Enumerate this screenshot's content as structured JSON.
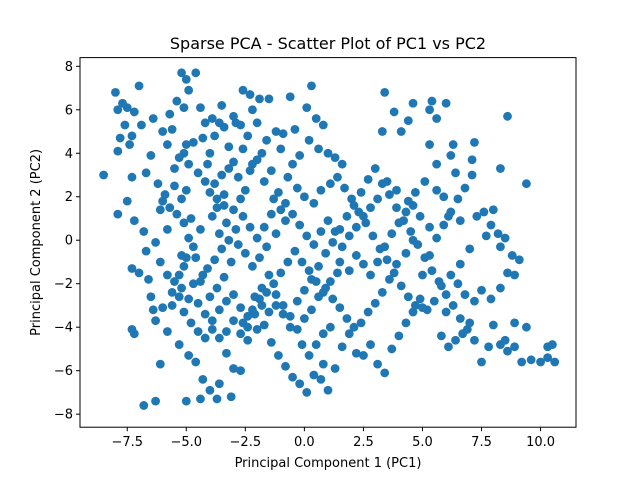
{
  "chart_data": {
    "type": "scatter",
    "title": "Sparse PCA - Scatter Plot of PC1 vs PC2",
    "xlabel": "Principal Component 1 (PC1)",
    "ylabel": "Principal Component 2 (PC2)",
    "xlim": [
      -9.5,
      11.5
    ],
    "ylim": [
      -8.6,
      8.4
    ],
    "xticks": [
      -7.5,
      -5.0,
      -2.5,
      0.0,
      2.5,
      5.0,
      7.5,
      10.0
    ],
    "xtick_labels": [
      "−7.5",
      "−5.0",
      "−2.5",
      "0.0",
      "2.5",
      "5.0",
      "7.5",
      "10.0"
    ],
    "yticks": [
      -8,
      -6,
      -4,
      -2,
      0,
      2,
      4,
      6,
      8
    ],
    "ytick_labels": [
      "−8",
      "−6",
      "−4",
      "−2",
      "0",
      "2",
      "4",
      "6",
      "8"
    ],
    "grid": false,
    "marker_color": "#1f77b4",
    "points": [
      [
        -8.5,
        3.0
      ],
      [
        -8.0,
        6.8
      ],
      [
        -7.9,
        6.0
      ],
      [
        -7.7,
        6.3
      ],
      [
        -7.5,
        6.1
      ],
      [
        -7.8,
        4.7
      ],
      [
        -7.6,
        5.3
      ],
      [
        -7.4,
        4.4
      ],
      [
        -7.3,
        4.8
      ],
      [
        -7.2,
        5.9
      ],
      [
        -7.9,
        4.1
      ],
      [
        -7.3,
        2.9
      ],
      [
        -7.0,
        7.1
      ],
      [
        -6.9,
        5.3
      ],
      [
        -6.5,
        3.9
      ],
      [
        -6.7,
        3.1
      ],
      [
        -7.5,
        1.8
      ],
      [
        -7.9,
        1.2
      ],
      [
        -7.2,
        0.9
      ],
      [
        -6.8,
        0.4
      ],
      [
        -7.3,
        -1.3
      ],
      [
        -7.0,
        -1.5
      ],
      [
        -6.7,
        -0.5
      ],
      [
        -6.3,
        -0.1
      ],
      [
        -6.6,
        -1.8
      ],
      [
        -6.5,
        -2.6
      ],
      [
        -6.4,
        -3.2
      ],
      [
        -6.3,
        -3.7
      ],
      [
        -7.3,
        -4.1
      ],
      [
        -7.2,
        -4.3
      ],
      [
        -6.8,
        -7.6
      ],
      [
        -6.3,
        -7.4
      ],
      [
        -6.1,
        -5.7
      ],
      [
        -5.8,
        -4.2
      ],
      [
        -6.0,
        -3.1
      ],
      [
        -5.6,
        -2.4
      ],
      [
        -5.3,
        -1.6
      ],
      [
        -5.2,
        -0.7
      ],
      [
        -5.8,
        0.5
      ],
      [
        -6.1,
        1.4
      ],
      [
        -5.9,
        2.1
      ],
      [
        -5.5,
        2.5
      ],
      [
        -5.2,
        1.9
      ],
      [
        -5.0,
        2.3
      ],
      [
        -5.5,
        3.3
      ],
      [
        -5.1,
        4.0
      ],
      [
        -5.0,
        4.4
      ],
      [
        -4.7,
        4.5
      ],
      [
        -5.6,
        5.1
      ],
      [
        -5.7,
        5.8
      ],
      [
        -5.4,
        6.4
      ],
      [
        -5.2,
        7.7
      ],
      [
        -5.0,
        7.4
      ],
      [
        -4.9,
        6.9
      ],
      [
        -4.6,
        7.7
      ],
      [
        -5.1,
        6.1
      ],
      [
        -4.4,
        6.1
      ],
      [
        -4.2,
        5.4
      ],
      [
        -3.9,
        5.6
      ],
      [
        -3.6,
        5.4
      ],
      [
        -3.4,
        5.2
      ],
      [
        -4.0,
        4.0
      ],
      [
        -4.3,
        4.7
      ],
      [
        -4.1,
        3.5
      ],
      [
        -3.8,
        2.6
      ],
      [
        -3.5,
        3.0
      ],
      [
        -3.2,
        3.3
      ],
      [
        -3.4,
        2.1
      ],
      [
        -3.7,
        1.5
      ],
      [
        -3.9,
        1.1
      ],
      [
        -3.6,
        0.3
      ],
      [
        -3.3,
        0.8
      ],
      [
        -3.0,
        1.4
      ],
      [
        -2.7,
        1.9
      ],
      [
        -2.5,
        2.3
      ],
      [
        -2.8,
        2.9
      ],
      [
        -2.3,
        3.2
      ],
      [
        -2.0,
        3.7
      ],
      [
        -2.6,
        4.2
      ],
      [
        -2.4,
        4.8
      ],
      [
        -2.9,
        5.4
      ],
      [
        -2.2,
        6.0
      ],
      [
        -2.6,
        6.9
      ],
      [
        -2.3,
        6.7
      ],
      [
        -1.9,
        6.5
      ],
      [
        -1.5,
        6.5
      ],
      [
        -1.2,
        5.0
      ],
      [
        -1.0,
        4.2
      ],
      [
        -1.4,
        3.2
      ],
      [
        -1.7,
        2.7
      ],
      [
        -1.3,
        1.9
      ],
      [
        -1.0,
        1.4
      ],
      [
        -0.8,
        0.9
      ],
      [
        -1.2,
        0.3
      ],
      [
        -1.6,
        -0.3
      ],
      [
        -1.9,
        -0.8
      ],
      [
        -2.2,
        -1.2
      ],
      [
        -2.5,
        -0.6
      ],
      [
        -2.8,
        -0.2
      ],
      [
        -3.1,
        -1.0
      ],
      [
        -3.4,
        -1.7
      ],
      [
        -3.7,
        -2.2
      ],
      [
        -4.0,
        -2.6
      ],
      [
        -4.3,
        -1.6
      ],
      [
        -4.6,
        -0.8
      ],
      [
        -4.4,
        0.5
      ],
      [
        -4.8,
        1.0
      ],
      [
        -4.9,
        0.1
      ],
      [
        -5.1,
        -1.2
      ],
      [
        -4.7,
        -2.0
      ],
      [
        -4.5,
        -2.9
      ],
      [
        -4.2,
        -3.4
      ],
      [
        -3.9,
        -3.7
      ],
      [
        -3.6,
        -3.2
      ],
      [
        -3.3,
        -2.8
      ],
      [
        -3.0,
        -2.5
      ],
      [
        -2.7,
        -3.1
      ],
      [
        -2.4,
        -3.5
      ],
      [
        -2.1,
        -2.6
      ],
      [
        -1.8,
        -2.2
      ],
      [
        -1.5,
        -1.6
      ],
      [
        -1.2,
        -2.5
      ],
      [
        -0.9,
        -3.0
      ],
      [
        -0.6,
        -3.5
      ],
      [
        -0.3,
        -2.8
      ],
      [
        0.0,
        -2.3
      ],
      [
        0.3,
        -1.8
      ],
      [
        0.6,
        -1.2
      ],
      [
        0.9,
        -0.6
      ],
      [
        1.2,
        -0.1
      ],
      [
        1.5,
        0.5
      ],
      [
        1.8,
        1.1
      ],
      [
        2.1,
        1.6
      ],
      [
        2.4,
        2.2
      ],
      [
        2.7,
        2.8
      ],
      [
        3.0,
        3.3
      ],
      [
        3.3,
        2.6
      ],
      [
        3.6,
        2.1
      ],
      [
        3.9,
        1.5
      ],
      [
        4.2,
        0.9
      ],
      [
        4.5,
        0.4
      ],
      [
        4.8,
        -0.2
      ],
      [
        5.1,
        -0.8
      ],
      [
        5.4,
        -1.4
      ],
      [
        5.7,
        -1.9
      ],
      [
        6.0,
        -2.5
      ],
      [
        6.3,
        -3.0
      ],
      [
        6.6,
        -3.6
      ],
      [
        6.9,
        -4.1
      ],
      [
        7.2,
        -4.6
      ],
      [
        -5.3,
        -4.8
      ],
      [
        -4.9,
        -5.3
      ],
      [
        -4.6,
        -5.6
      ],
      [
        -4.3,
        -6.4
      ],
      [
        -4.0,
        -6.9
      ],
      [
        -3.6,
        -6.6
      ],
      [
        -3.3,
        -5.2
      ],
      [
        -3.0,
        -5.9
      ],
      [
        -2.7,
        -6.0
      ],
      [
        -2.4,
        -4.6
      ],
      [
        -2.0,
        -4.1
      ],
      [
        -1.7,
        -3.9
      ],
      [
        -1.4,
        -4.7
      ],
      [
        -1.1,
        -5.3
      ],
      [
        -0.8,
        -5.8
      ],
      [
        -0.5,
        -6.3
      ],
      [
        -0.2,
        -6.6
      ],
      [
        0.1,
        -7.0
      ],
      [
        0.4,
        -6.2
      ],
      [
        0.8,
        -5.7
      ],
      [
        -3.7,
        -7.3
      ],
      [
        -4.4,
        -7.3
      ],
      [
        -5.0,
        -7.4
      ],
      [
        -3.1,
        -7.2
      ],
      [
        0.7,
        -6.4
      ],
      [
        1.0,
        -6.9
      ],
      [
        1.3,
        -5.9
      ],
      [
        1.6,
        -4.9
      ],
      [
        1.9,
        -4.3
      ],
      [
        2.2,
        -5.2
      ],
      [
        2.5,
        -5.3
      ],
      [
        2.8,
        -4.8
      ],
      [
        3.1,
        -5.7
      ],
      [
        3.4,
        -6.1
      ],
      [
        3.7,
        -5.0
      ],
      [
        4.0,
        -4.4
      ],
      [
        4.3,
        -3.8
      ],
      [
        4.6,
        -3.3
      ],
      [
        4.9,
        -2.7
      ],
      [
        5.2,
        -3.2
      ],
      [
        0.3,
        7.1
      ],
      [
        -0.6,
        6.6
      ],
      [
        0.1,
        6.1
      ],
      [
        0.5,
        5.6
      ],
      [
        0.8,
        5.3
      ],
      [
        -0.4,
        5.1
      ],
      [
        -0.9,
        4.9
      ],
      [
        0.2,
        4.6
      ],
      [
        0.6,
        4.2
      ],
      [
        1.0,
        4.0
      ],
      [
        1.3,
        3.8
      ],
      [
        1.6,
        3.5
      ],
      [
        -0.2,
        3.9
      ],
      [
        -0.5,
        3.5
      ],
      [
        -0.7,
        2.9
      ],
      [
        -0.3,
        2.4
      ],
      [
        0.0,
        2.0
      ],
      [
        0.4,
        1.7
      ],
      [
        0.7,
        2.3
      ],
      [
        1.1,
        2.6
      ],
      [
        1.4,
        2.9
      ],
      [
        1.7,
        2.4
      ],
      [
        2.0,
        1.9
      ],
      [
        2.3,
        1.3
      ],
      [
        2.6,
        0.8
      ],
      [
        2.9,
        0.2
      ],
      [
        3.2,
        -0.4
      ],
      [
        3.5,
        -0.9
      ],
      [
        3.8,
        -1.5
      ],
      [
        4.1,
        -2.1
      ],
      [
        4.4,
        -2.6
      ],
      [
        4.7,
        -3.0
      ],
      [
        5.0,
        -1.6
      ],
      [
        5.3,
        -0.7
      ],
      [
        5.6,
        0.1
      ],
      [
        5.9,
        0.7
      ],
      [
        6.2,
        1.3
      ],
      [
        6.5,
        1.9
      ],
      [
        6.8,
        2.4
      ],
      [
        7.1,
        3.0
      ],
      [
        3.4,
        6.8
      ],
      [
        3.8,
        5.9
      ],
      [
        4.6,
        6.3
      ],
      [
        5.3,
        6.0
      ],
      [
        5.4,
        6.4
      ],
      [
        6.0,
        6.3
      ],
      [
        4.4,
        5.5
      ],
      [
        3.3,
        5.0
      ],
      [
        4.1,
        5.0
      ],
      [
        5.6,
        5.6
      ],
      [
        5.3,
        4.4
      ],
      [
        6.2,
        3.9
      ],
      [
        6.4,
        3.1
      ],
      [
        7.1,
        3.7
      ],
      [
        5.1,
        2.7
      ],
      [
        5.6,
        2.3
      ],
      [
        5.9,
        2.0
      ],
      [
        4.7,
        2.2
      ],
      [
        4.4,
        1.8
      ],
      [
        4.9,
        1.1
      ],
      [
        6.1,
        1.1
      ],
      [
        6.6,
        0.9
      ],
      [
        7.3,
        1.1
      ],
      [
        7.6,
        1.3
      ],
      [
        8.0,
        1.4
      ],
      [
        7.9,
        0.7
      ],
      [
        7.7,
        0.2
      ],
      [
        8.2,
        0.3
      ],
      [
        8.5,
        0.1
      ],
      [
        8.3,
        -0.3
      ],
      [
        8.8,
        -0.7
      ],
      [
        9.1,
        -0.9
      ],
      [
        8.6,
        -1.5
      ],
      [
        8.3,
        -2.2
      ],
      [
        7.9,
        -2.7
      ],
      [
        7.5,
        -2.3
      ],
      [
        7.2,
        -2.8
      ],
      [
        6.8,
        -2.5
      ],
      [
        6.5,
        -2.0
      ],
      [
        8.9,
        -1.6
      ],
      [
        9.4,
        2.6
      ],
      [
        8.3,
        3.3
      ],
      [
        8.6,
        5.7
      ],
      [
        7.2,
        4.5
      ],
      [
        6.3,
        4.4
      ],
      [
        5.6,
        3.5
      ],
      [
        5.0,
        -3.1
      ],
      [
        6.1,
        -4.9
      ],
      [
        5.8,
        -4.4
      ],
      [
        6.4,
        -4.6
      ],
      [
        7.0,
        -3.8
      ],
      [
        7.5,
        -5.6
      ],
      [
        8.0,
        -3.9
      ],
      [
        8.3,
        -4.8
      ],
      [
        8.6,
        -5.1
      ],
      [
        8.9,
        -4.9
      ],
      [
        9.2,
        -5.6
      ],
      [
        9.6,
        -5.5
      ],
      [
        10.0,
        -5.6
      ],
      [
        10.3,
        -5.4
      ],
      [
        10.6,
        -5.6
      ],
      [
        10.5,
        -4.8
      ],
      [
        10.3,
        -4.9
      ],
      [
        9.4,
        -4.0
      ],
      [
        8.9,
        -3.8
      ],
      [
        8.5,
        -4.6
      ],
      [
        7.8,
        -4.9
      ],
      [
        6.7,
        -4.3
      ],
      [
        6.0,
        -3.3
      ],
      [
        5.5,
        -2.8
      ],
      [
        5.8,
        -2.1
      ],
      [
        6.2,
        -1.6
      ],
      [
        6.6,
        -1.1
      ],
      [
        7.0,
        -0.4
      ],
      [
        5.3,
        0.6
      ],
      [
        4.6,
        0.0
      ],
      [
        4.3,
        -0.6
      ],
      [
        3.9,
        -1.1
      ],
      [
        3.6,
        -1.8
      ],
      [
        3.3,
        -2.4
      ],
      [
        3.0,
        -2.9
      ],
      [
        2.7,
        -3.3
      ],
      [
        2.4,
        -3.8
      ],
      [
        2.1,
        -4.0
      ],
      [
        1.8,
        -3.6
      ],
      [
        1.5,
        -3.1
      ],
      [
        1.2,
        -2.7
      ],
      [
        0.9,
        -2.2
      ],
      [
        0.6,
        -2.6
      ],
      [
        0.3,
        -3.2
      ],
      [
        0.0,
        -3.6
      ],
      [
        -0.3,
        -4.1
      ],
      [
        -0.6,
        -4.0
      ],
      [
        -0.9,
        -3.4
      ],
      [
        -1.2,
        -3.0
      ],
      [
        -1.5,
        -3.3
      ],
      [
        -1.8,
        -3.0
      ],
      [
        -2.1,
        -3.4
      ],
      [
        -2.4,
        -4.0
      ],
      [
        -2.7,
        -4.3
      ],
      [
        1.1,
        -4.0
      ],
      [
        0.8,
        -4.3
      ],
      [
        0.5,
        -4.8
      ],
      [
        0.2,
        -5.3
      ],
      [
        -0.1,
        -4.8
      ],
      [
        1.5,
        -1.0
      ],
      [
        1.9,
        -1.4
      ],
      [
        2.2,
        -0.7
      ],
      [
        2.5,
        -1.1
      ],
      [
        2.8,
        -1.6
      ],
      [
        3.1,
        -1.0
      ],
      [
        3.4,
        -0.3
      ],
      [
        3.7,
        0.3
      ],
      [
        4.0,
        0.8
      ],
      [
        4.3,
        1.3
      ],
      [
        4.6,
        1.6
      ],
      [
        3.9,
        2.3
      ],
      [
        3.5,
        2.7
      ],
      [
        3.1,
        1.9
      ],
      [
        2.8,
        1.5
      ],
      [
        2.5,
        1.1
      ],
      [
        2.2,
        0.6
      ],
      [
        1.9,
        0.2
      ],
      [
        1.6,
        -0.3
      ],
      [
        1.3,
        0.4
      ],
      [
        1.0,
        0.9
      ],
      [
        0.7,
        0.4
      ],
      [
        0.4,
        -0.2
      ],
      [
        0.1,
        0.2
      ],
      [
        -0.2,
        0.7
      ],
      [
        -0.5,
        1.2
      ],
      [
        -0.8,
        1.7
      ],
      [
        -1.1,
        2.2
      ],
      [
        -1.4,
        1.2
      ],
      [
        -1.7,
        0.6
      ],
      [
        -2.0,
        0.1
      ],
      [
        -2.3,
        0.6
      ],
      [
        -2.6,
        1.1
      ],
      [
        -2.9,
        0.5
      ],
      [
        -3.2,
        0.0
      ],
      [
        -3.5,
        -0.4
      ],
      [
        -3.8,
        -0.9
      ],
      [
        -4.1,
        -1.3
      ],
      [
        -4.4,
        -1.9
      ],
      [
        -4.7,
        -0.3
      ],
      [
        -5.0,
        -0.8
      ],
      [
        -5.3,
        -2.6
      ],
      [
        -5.6,
        -3.0
      ],
      [
        -5.1,
        -3.3
      ],
      [
        -4.8,
        -3.8
      ],
      [
        -4.5,
        -4.2
      ],
      [
        -4.2,
        -4.5
      ],
      [
        -3.9,
        -4.1
      ],
      [
        -3.6,
        -4.5
      ],
      [
        -3.3,
        -4.2
      ],
      [
        -3.0,
        -3.7
      ],
      [
        -2.6,
        -3.8
      ],
      [
        -2.2,
        -3.2
      ],
      [
        -1.9,
        -2.7
      ],
      [
        -1.6,
        -2.4
      ],
      [
        -1.3,
        -2.0
      ],
      [
        -1.0,
        -1.5
      ],
      [
        -0.7,
        -1.0
      ],
      [
        -0.4,
        -0.5
      ],
      [
        -0.1,
        -1.0
      ],
      [
        0.2,
        -1.4
      ],
      [
        0.5,
        -1.9
      ],
      [
        0.8,
        -2.4
      ],
      [
        1.1,
        -1.9
      ],
      [
        1.4,
        -1.5
      ],
      [
        -6.4,
        5.6
      ],
      [
        -6.0,
        5.0
      ],
      [
        -5.8,
        4.4
      ],
      [
        -5.3,
        3.8
      ],
      [
        -4.9,
        3.5
      ],
      [
        -4.5,
        3.1
      ],
      [
        -4.2,
        2.7
      ],
      [
        -4.0,
        2.2
      ],
      [
        -3.7,
        1.9
      ],
      [
        -3.4,
        1.6
      ],
      [
        -6.2,
        2.6
      ],
      [
        -6.0,
        1.8
      ],
      [
        -5.7,
        1.5
      ],
      [
        -5.4,
        1.2
      ],
      [
        -5.1,
        0.8
      ],
      [
        -6.1,
        -1.0
      ],
      [
        -5.8,
        -1.6
      ],
      [
        -5.5,
        -1.9
      ],
      [
        -5.2,
        -2.2
      ],
      [
        -4.9,
        -2.7
      ],
      [
        -3.5,
        6.2
      ],
      [
        -3.0,
        5.7
      ],
      [
        -2.7,
        5.3
      ],
      [
        -2.0,
        5.4
      ],
      [
        -1.6,
        4.6
      ],
      [
        -1.8,
        4.0
      ],
      [
        -2.2,
        3.5
      ],
      [
        -3.0,
        3.6
      ],
      [
        -3.2,
        4.3
      ],
      [
        -3.8,
        4.8
      ]
    ]
  }
}
